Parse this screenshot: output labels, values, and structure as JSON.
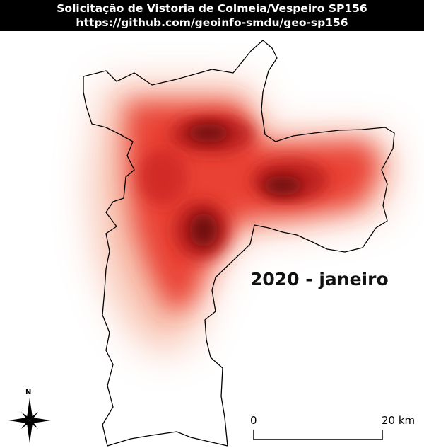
{
  "header": {
    "title": "Solicitação de Vistoria de Colmeia/Vespeiro SP156",
    "url": "https://github.com/geoinfo-smdu/geo-sp156"
  },
  "map": {
    "period_label": "2020 - janeiro",
    "north_label": "N",
    "scale_start": "0",
    "scale_end": "20 km",
    "north_arrow_icon": "compass-rose-icon",
    "colors": {
      "boundary": "#000000",
      "heat_low": "#fde0d6",
      "heat_mid": "#e8392a",
      "heat_high": "#6e0a0e"
    }
  }
}
